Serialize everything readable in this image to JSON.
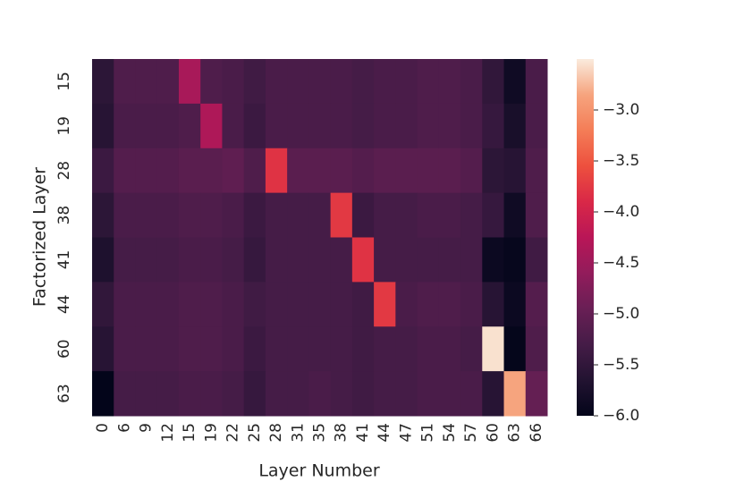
{
  "chart_data": {
    "type": "heatmap",
    "x_label": "Layer Number",
    "y_label": "Factorized Layer",
    "x_categories": [
      "0",
      "6",
      "9",
      "12",
      "15",
      "19",
      "22",
      "25",
      "28",
      "31",
      "35",
      "38",
      "41",
      "44",
      "47",
      "51",
      "54",
      "57",
      "60",
      "63",
      "66"
    ],
    "y_categories": [
      "15",
      "19",
      "28",
      "38",
      "41",
      "44",
      "60",
      "63"
    ],
    "values": [
      [
        -5.55,
        -5.2,
        -5.2,
        -5.2,
        -4.4,
        -5.2,
        -5.25,
        -5.35,
        -5.25,
        -5.25,
        -5.25,
        -5.25,
        -5.3,
        -5.25,
        -5.25,
        -5.2,
        -5.2,
        -5.25,
        -5.5,
        -5.85,
        -5.25
      ],
      [
        -5.6,
        -5.25,
        -5.25,
        -5.25,
        -5.2,
        -4.35,
        -5.25,
        -5.4,
        -5.25,
        -5.25,
        -5.25,
        -5.25,
        -5.3,
        -5.25,
        -5.25,
        -5.2,
        -5.2,
        -5.25,
        -5.45,
        -5.75,
        -5.25
      ],
      [
        -5.4,
        -5.15,
        -5.15,
        -5.15,
        -5.1,
        -5.1,
        -5.05,
        -5.2,
        -3.8,
        -5.1,
        -5.1,
        -5.1,
        -5.15,
        -5.1,
        -5.1,
        -5.1,
        -5.1,
        -5.15,
        -5.55,
        -5.6,
        -5.2
      ],
      [
        -5.55,
        -5.25,
        -5.25,
        -5.25,
        -5.2,
        -5.2,
        -5.25,
        -5.4,
        -5.3,
        -5.3,
        -5.3,
        -3.75,
        -5.4,
        -5.3,
        -5.3,
        -5.25,
        -5.25,
        -5.3,
        -5.45,
        -5.85,
        -5.2
      ],
      [
        -5.7,
        -5.3,
        -5.3,
        -5.3,
        -5.25,
        -5.25,
        -5.3,
        -5.45,
        -5.3,
        -5.3,
        -5.3,
        -5.3,
        -3.8,
        -5.3,
        -5.3,
        -5.3,
        -5.3,
        -5.3,
        -5.9,
        -5.95,
        -5.35
      ],
      [
        -5.5,
        -5.25,
        -5.25,
        -5.25,
        -5.2,
        -5.2,
        -5.25,
        -5.35,
        -5.3,
        -5.3,
        -5.3,
        -5.3,
        -5.35,
        -3.75,
        -5.25,
        -5.2,
        -5.2,
        -5.25,
        -5.6,
        -5.9,
        -5.15
      ],
      [
        -5.6,
        -5.25,
        -5.25,
        -5.25,
        -5.2,
        -5.2,
        -5.25,
        -5.4,
        -5.3,
        -5.3,
        -5.3,
        -5.3,
        -5.35,
        -5.3,
        -5.3,
        -5.25,
        -5.25,
        -5.3,
        -2.55,
        -5.98,
        -5.2
      ],
      [
        -6.0,
        -5.3,
        -5.3,
        -5.3,
        -5.25,
        -5.25,
        -5.3,
        -5.45,
        -5.3,
        -5.3,
        -5.25,
        -5.3,
        -5.35,
        -5.3,
        -5.3,
        -5.25,
        -5.25,
        -5.25,
        -5.6,
        -2.85,
        -5.0
      ]
    ],
    "clim": [
      -6.0,
      -2.5
    ],
    "colorbar_ticks": [
      {
        "value": -3.0,
        "label": "−3.0"
      },
      {
        "value": -3.5,
        "label": "−3.5"
      },
      {
        "value": -4.0,
        "label": "−4.0"
      },
      {
        "value": -4.5,
        "label": "−4.5"
      },
      {
        "value": -5.0,
        "label": "−5.0"
      },
      {
        "value": -5.5,
        "label": "−5.5"
      },
      {
        "value": -6.0,
        "label": "−6.0"
      }
    ],
    "colormap": [
      "#03051a",
      "#221331",
      "#451c47",
      "#691f55",
      "#921c5b",
      "#b91657",
      "#d92847",
      "#ed503e",
      "#f47d57",
      "#f6a47e",
      "#faebdd"
    ]
  }
}
